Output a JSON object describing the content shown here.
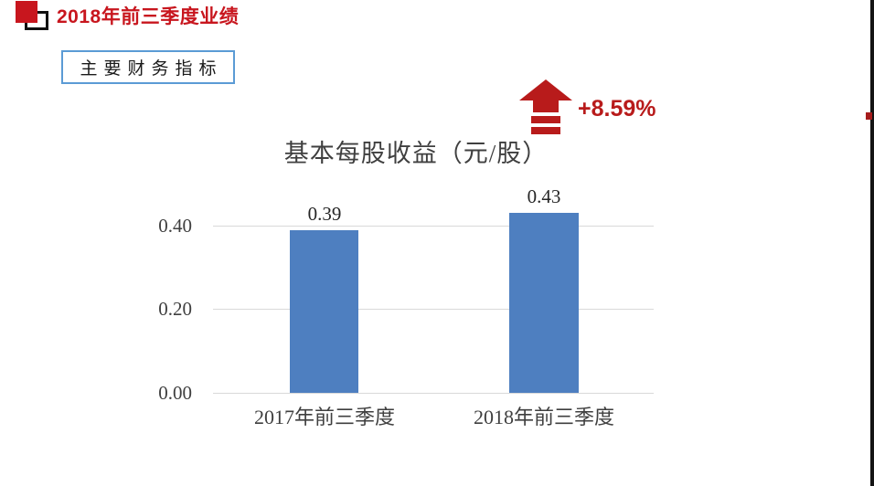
{
  "header": {
    "title": "2018年前三季度业绩",
    "section_label": "主要财务指标"
  },
  "indicator": {
    "change": "+8.59%",
    "direction": "up"
  },
  "chart_data": {
    "type": "bar",
    "title": "基本每股收益（元/股）",
    "categories": [
      "2017年前三季度",
      "2018年前三季度"
    ],
    "values": [
      0.39,
      0.43
    ],
    "value_labels": [
      "0.39",
      "0.43"
    ],
    "xlabel": "",
    "ylabel": "",
    "yticks": [
      {
        "label": "0.40",
        "value": 0.4
      },
      {
        "label": "0.20",
        "value": 0.2
      },
      {
        "label": "0.00",
        "value": 0.0
      }
    ],
    "ylim": [
      0,
      0.45
    ],
    "grid": true,
    "legend": "none",
    "bar_color": "#4e7fc0",
    "gridline_color": "#d9d9d9"
  },
  "colors": {
    "header_red": "#c8161e",
    "accent_red": "#b81b1b",
    "box_border_blue": "#5b9bd5",
    "bar_blue": "#4e7fc0",
    "text_dark": "#3f3f3f"
  }
}
